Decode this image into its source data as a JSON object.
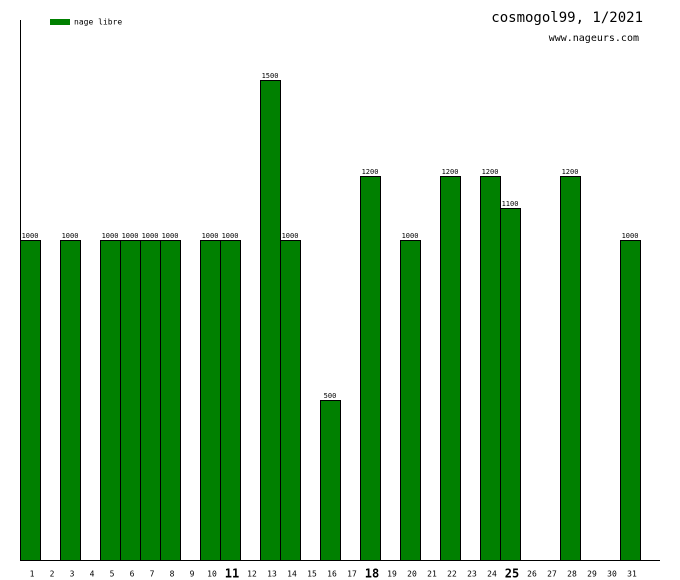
{
  "chart_data": {
    "type": "bar",
    "title": "cosmogol99, 1/2021",
    "subtitle": "www.nageurs.com",
    "categories": [
      "1",
      "2",
      "3",
      "4",
      "5",
      "6",
      "7",
      "8",
      "9",
      "10",
      "11",
      "12",
      "13",
      "14",
      "15",
      "16",
      "17",
      "18",
      "19",
      "20",
      "21",
      "22",
      "23",
      "24",
      "25",
      "26",
      "27",
      "28",
      "29",
      "30",
      "31"
    ],
    "bold_categories": [
      "11",
      "18",
      "25"
    ],
    "series": [
      {
        "name": "nage libre",
        "color": "#008000",
        "values": [
          1000,
          null,
          1000,
          null,
          1000,
          1000,
          1000,
          1000,
          null,
          1000,
          1000,
          null,
          1500,
          1000,
          null,
          500,
          null,
          1200,
          null,
          1000,
          null,
          1200,
          null,
          1200,
          1100,
          null,
          null,
          1200,
          null,
          null,
          1000
        ]
      }
    ],
    "ylim": [
      0,
      1687.5
    ]
  }
}
